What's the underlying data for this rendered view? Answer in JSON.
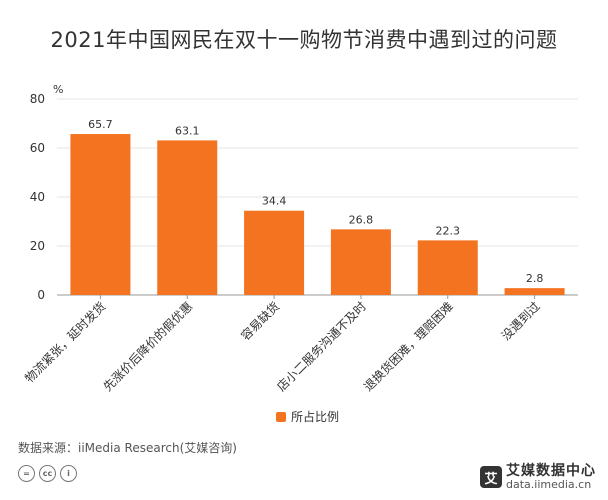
{
  "title": "2021年中国网民在双十一购物节消费中遇到过的问题",
  "legend_label": "所占比例",
  "source": "数据来源：iiMedia Research(艾媒咨询)",
  "brand": {
    "logo_char": "艾",
    "name": "艾媒数据中心",
    "url": "data.iimedia.cn"
  },
  "cc_icons": [
    "=",
    "cc",
    "i"
  ],
  "colors": {
    "bar": "#F47321",
    "grid": "#e6e6e6",
    "axis": "#999999",
    "text": "#333333"
  },
  "chart_data": {
    "type": "bar",
    "title": "2021年中国网民在双十一购物节消费中遇到过的问题",
    "ylabel": "%",
    "xlabel": "",
    "ylim": [
      0,
      80
    ],
    "yticks": [
      0,
      20,
      40,
      60,
      80
    ],
    "grid": true,
    "legend_position": "bottom",
    "categories": [
      "物流紧张，延时发货",
      "先涨价后降价的假优惠",
      "容易缺货",
      "店小二服务沟通不及时",
      "退换货困难，理赔困难",
      "没遇到过"
    ],
    "series": [
      {
        "name": "所占比例",
        "values": [
          65.7,
          63.1,
          34.4,
          26.8,
          22.3,
          2.8
        ]
      }
    ]
  }
}
